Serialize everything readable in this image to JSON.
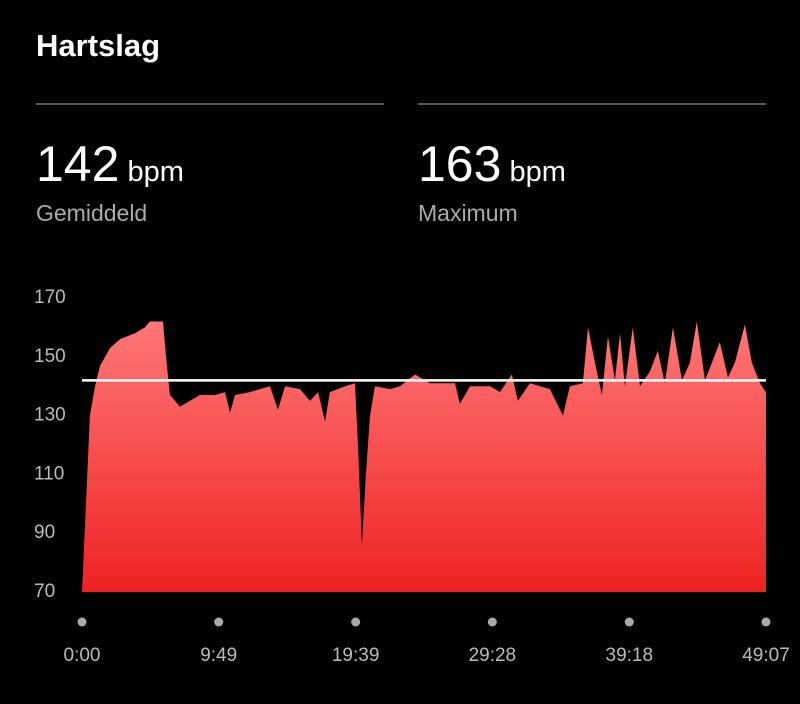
{
  "header": {
    "title": "Hartslag"
  },
  "stats": [
    {
      "value": 142,
      "unit": "bpm",
      "label": "Gemiddeld"
    },
    {
      "value": 163,
      "unit": "bpm",
      "label": "Maximum"
    }
  ],
  "chart_data": {
    "type": "area",
    "x": [
      0,
      17,
      34,
      56,
      78,
      121,
      164,
      228,
      271,
      293,
      349,
      362,
      379,
      401,
      422,
      465,
      508,
      573,
      616,
      638,
      659,
      724,
      810,
      844,
      875,
      939,
      982,
      1017,
      1047,
      1068,
      1133,
      1176,
      1189,
      1206,
      1223,
      1241,
      1262,
      1327,
      1370,
      1435,
      1499,
      1607,
      1628,
      1672,
      1758,
      1801,
      1852,
      1878,
      1930,
      2016,
      2072,
      2102,
      2158,
      2180,
      2210,
      2240,
      2266,
      2296,
      2318,
      2339,
      2373,
      2404,
      2447,
      2481,
      2511,
      2546,
      2585,
      2619,
      2649,
      2684,
      2714,
      2748,
      2783,
      2813,
      2856,
      2886,
      2921,
      2947
    ],
    "series": [
      {
        "color": "#f05454",
        "values": [
          70,
          100,
          130,
          140,
          147,
          153,
          156,
          158,
          160,
          162,
          162,
          150,
          137,
          135,
          133,
          135,
          137,
          137,
          138,
          131,
          137,
          138,
          140,
          132,
          140,
          139,
          135,
          138,
          128,
          138,
          140,
          141,
          120,
          86,
          110,
          130,
          140,
          139,
          140,
          144,
          141,
          141,
          134,
          140,
          140,
          138,
          144,
          135,
          141,
          139,
          130,
          140,
          141,
          160,
          148,
          137,
          157,
          142,
          158,
          140,
          160,
          140,
          145,
          152,
          141,
          160,
          142,
          148,
          162,
          142,
          148,
          155,
          143,
          148,
          161,
          148,
          141,
          138
        ]
      }
    ],
    "xlim": [
      0,
      2947
    ],
    "ylim": [
      70,
      170
    ],
    "xticks": [
      {
        "value": 0,
        "label": "0:00"
      },
      {
        "value": 589,
        "label": "9:49"
      },
      {
        "value": 1179,
        "label": "19:39"
      },
      {
        "value": 1768,
        "label": "29:28"
      },
      {
        "value": 2358,
        "label": "39:18"
      },
      {
        "value": 2947,
        "label": "49:07"
      }
    ],
    "yticks": [
      70,
      90,
      110,
      130,
      150,
      170
    ]
  }
}
